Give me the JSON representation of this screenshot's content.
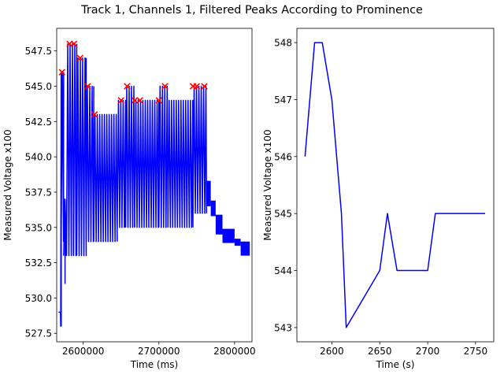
{
  "figure_title": "Track 1, Channels 1, Filtered Peaks According to Prominence",
  "chart_data": [
    {
      "type": "line",
      "xlabel": "Time (ms)",
      "ylabel": "Measured Voltage x100",
      "xlim": [
        2565000,
        2823000
      ],
      "ylim": [
        526.9,
        549.1
      ],
      "xticks": [
        2600000,
        2700000,
        2800000
      ],
      "xtick_labels": [
        "2600000",
        "2700000",
        "2800000"
      ],
      "yticks": [
        527.5,
        530.0,
        532.5,
        535.0,
        537.5,
        540.0,
        542.5,
        545.0,
        547.5
      ],
      "ytick_labels": [
        "527.5",
        "530.0",
        "532.5",
        "535.0",
        "537.5",
        "540.0",
        "542.5",
        "545.0",
        "547.5"
      ],
      "grid": false,
      "line_color": "#0000ff",
      "marker_color": "#ff0000",
      "signal": {
        "segments": [
          {
            "x": [
              2567500,
              2570000,
              2570300,
              2570900
            ],
            "y": [
              529,
              529,
              528,
              546
            ]
          },
          {
            "x": [
              2570900,
              2574200
            ],
            "ylow": 534,
            "yhigh": 546
          },
          {
            "x": [
              2574200,
              2578000
            ],
            "ylow": 533,
            "yhigh": 537
          },
          {
            "x": [
              2578000,
              2591500
            ],
            "ylow": 533,
            "yhigh": 548
          },
          {
            "x": [
              2591500,
              2604000
            ],
            "ylow": 533,
            "yhigh": 547
          },
          {
            "x": [
              2604000,
              2614000
            ],
            "ylow": 534,
            "yhigh": 545
          },
          {
            "x": [
              2614000,
              2645000
            ],
            "ylow": 534,
            "yhigh": 543
          },
          {
            "x": [
              2645000,
              2656000
            ],
            "ylow": 535,
            "yhigh": 544
          },
          {
            "x": [
              2656000,
              2668000
            ],
            "ylow": 535,
            "yhigh": 545
          },
          {
            "x": [
              2668000,
              2700000
            ],
            "ylow": 535,
            "yhigh": 544
          },
          {
            "x": [
              2700000,
              2712000
            ],
            "ylow": 535,
            "yhigh": 545
          },
          {
            "x": [
              2712000,
              2745000
            ],
            "ylow": 535,
            "yhigh": 544
          },
          {
            "x": [
              2745000,
              2763000
            ],
            "ylow": 536,
            "yhigh": 545
          }
        ],
        "blocks": [
          {
            "x": [
              2762000,
              2768500
            ],
            "y": [
              536.5,
              538.3
            ]
          },
          {
            "x": [
              2768500,
              2775000
            ],
            "y": [
              535.8,
              536.9
            ]
          },
          {
            "x": [
              2775000,
              2784000
            ],
            "y": [
              534.5,
              535.9
            ]
          },
          {
            "x": [
              2784000,
              2800000
            ],
            "y": [
              533.9,
              534.9
            ]
          },
          {
            "x": [
              2800000,
              2808000
            ],
            "y": [
              533.7,
              534.2
            ]
          },
          {
            "x": [
              2808000,
              2820000
            ],
            "y": [
              533.0,
              534.0
            ]
          }
        ],
        "dips": [
          {
            "x": 2571000,
            "y": 528
          },
          {
            "x": 2576000,
            "y": 531
          },
          {
            "x": 2587000,
            "y": 533
          }
        ]
      },
      "peaks": {
        "x": [
          2572000,
          2582000,
          2588000,
          2596000,
          2606000,
          2615000,
          2650000,
          2658000,
          2668000,
          2675000,
          2700000,
          2708000,
          2745000,
          2750000,
          2760000
        ],
        "y": [
          546,
          548,
          548,
          547,
          545,
          543,
          544,
          545,
          544,
          544,
          544,
          545,
          545,
          545,
          545
        ]
      }
    },
    {
      "type": "line",
      "xlabel": "Time (s)",
      "ylabel": "Measured Voltage x100",
      "xlim": [
        2563.5,
        2769
      ],
      "ylim": [
        542.75,
        548.25
      ],
      "xticks": [
        2600,
        2650,
        2700,
        2750
      ],
      "xtick_labels": [
        "2600",
        "2650",
        "2700",
        "2750"
      ],
      "yticks": [
        543,
        544,
        545,
        546,
        547,
        548
      ],
      "ytick_labels": [
        "543",
        "544",
        "545",
        "546",
        "547",
        "548"
      ],
      "grid": false,
      "line_color": "#0000ff",
      "x": [
        2572,
        2582,
        2590,
        2600,
        2610,
        2615,
        2650,
        2658,
        2668,
        2700,
        2708,
        2760
      ],
      "y": [
        546,
        548,
        548,
        547,
        545,
        543,
        544,
        545,
        544,
        544,
        545,
        545
      ]
    }
  ]
}
